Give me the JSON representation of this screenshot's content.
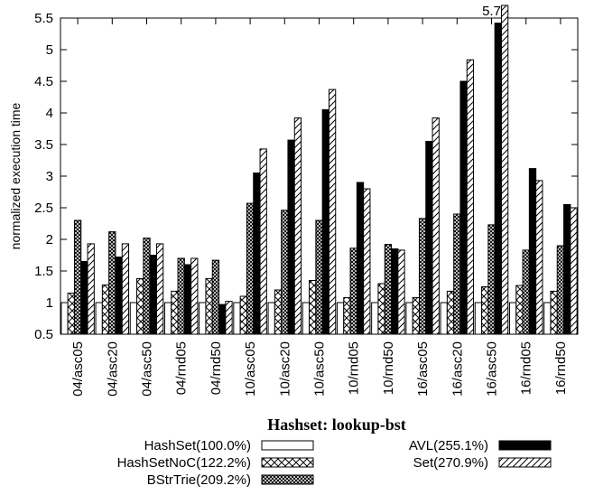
{
  "chart_data": {
    "type": "bar",
    "title": "Hashset: lookup-bst",
    "xlabel": "",
    "ylabel": "normalized execution time",
    "ylim": [
      0.5,
      5.5
    ],
    "yticks": [
      "0.5",
      "1",
      "1.5",
      "2",
      "2.5",
      "3",
      "3.5",
      "4",
      "4.5",
      "5",
      "5.5"
    ],
    "categories": [
      "04/asc05",
      "04/asc20",
      "04/asc50",
      "04/rnd05",
      "04/rnd50",
      "10/asc05",
      "10/asc20",
      "10/asc50",
      "10/rnd05",
      "10/rnd50",
      "16/asc05",
      "16/asc20",
      "16/asc50",
      "16/rnd05",
      "16/rnd50"
    ],
    "series": [
      {
        "name": "HashSet(100.0%)",
        "pattern": "empty",
        "values": [
          1,
          1,
          1,
          1,
          1,
          1,
          1,
          1,
          1,
          1,
          1,
          1,
          1,
          1,
          1
        ]
      },
      {
        "name": "HashSetNoC(122.2%)",
        "pattern": "cross",
        "values": [
          1.15,
          1.28,
          1.38,
          1.18,
          1.38,
          1.1,
          1.2,
          1.35,
          1.08,
          1.3,
          1.08,
          1.18,
          1.25,
          1.27,
          1.18
        ]
      },
      {
        "name": "BStrTrie(209.2%)",
        "pattern": "dense-cross",
        "values": [
          2.3,
          2.12,
          2.02,
          1.7,
          1.67,
          2.57,
          2.46,
          2.3,
          1.86,
          1.92,
          2.33,
          2.4,
          2.23,
          1.83,
          1.9
        ]
      },
      {
        "name": "AVL(255.1%)",
        "pattern": "solid",
        "values": [
          1.65,
          1.72,
          1.75,
          1.6,
          0.97,
          3.05,
          3.57,
          4.05,
          2.9,
          1.85,
          3.55,
          4.5,
          5.42,
          3.12,
          2.55
        ]
      },
      {
        "name": "Set(270.9%)",
        "pattern": "diagonal",
        "values": [
          1.93,
          1.93,
          1.93,
          1.7,
          1.02,
          3.43,
          3.92,
          4.37,
          2.8,
          1.83,
          3.92,
          4.84,
          5.7,
          2.93,
          2.5
        ]
      }
    ],
    "annotations": [
      {
        "category": "16/asc50",
        "text": "5.7"
      }
    ],
    "legend_position": "bottom"
  },
  "colors": {
    "ink": "#000000",
    "background": "#ffffff"
  }
}
